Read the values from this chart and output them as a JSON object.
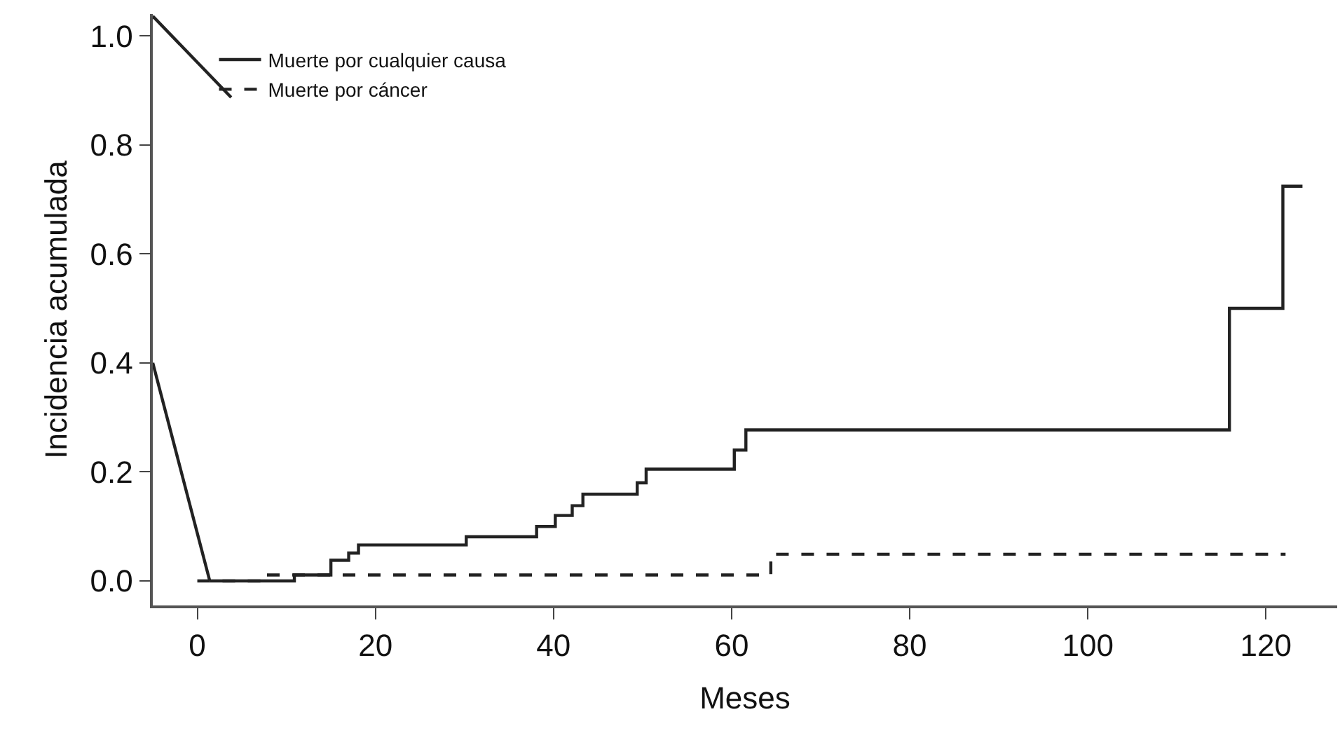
{
  "chart_data": {
    "type": "step",
    "xlabel": "Meses",
    "ylabel": "Incidencia acumulada",
    "xlim": [
      -5,
      128
    ],
    "ylim": [
      -0.045,
      1.04
    ],
    "xticks": [
      0,
      20,
      40,
      60,
      80,
      100,
      120
    ],
    "yticks": [
      {
        "value": 0,
        "label": "0.0"
      },
      {
        "value": 0.2,
        "label": "0.2"
      },
      {
        "value": 0.4,
        "label": "0.4"
      },
      {
        "value": 0.6,
        "label": "0.6"
      },
      {
        "value": 0.8,
        "label": "0.8"
      },
      {
        "value": 1,
        "label": "1.0"
      }
    ],
    "legend": "top left",
    "marker": "none",
    "series": [
      {
        "name": "Muerte por cualquier causa",
        "color": "#222222",
        "line_style": "solid",
        "x": [
          1.4,
          10.9,
          15,
          17,
          18.1,
          30.2,
          38.1,
          40.2,
          42.1,
          43.3,
          49.4,
          50.4,
          60.3,
          61.6,
          115.9,
          121.9,
          124.1
        ],
        "values": [
          0,
          0.011,
          0.038,
          0.051,
          0.066,
          0.081,
          0.1,
          0.12,
          0.138,
          0.159,
          0.18,
          0.205,
          0.24,
          0.277,
          0.5,
          0.724,
          0.724
        ]
      },
      {
        "name": "Muerte por cáncer",
        "color": "#222222",
        "line_style": "dashed",
        "x": [
          0,
          7.2,
          64.4,
          122.2
        ],
        "values": [
          0,
          0.011,
          0.049,
          0.049
        ]
      },
      {
        "type": "line",
        "color": "#222222",
        "line_style": "solid",
        "x": [
          -5,
          1.4
        ],
        "values": [
          0.4,
          0
        ]
      },
      {
        "type": "line",
        "color": "#222222",
        "line_style": "solid",
        "x": [
          -5,
          3.8
        ],
        "values": [
          1.036,
          0.887
        ]
      }
    ]
  }
}
